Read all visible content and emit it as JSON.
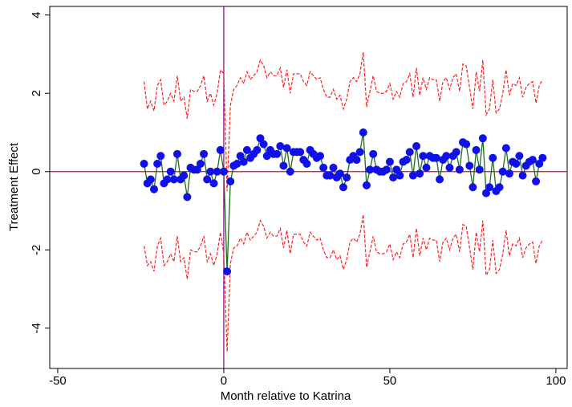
{
  "chart_data": {
    "type": "line",
    "xlabel": "Month relative to Katrina",
    "ylabel": "Treatment Effect",
    "xlim": [
      -52.4,
      103.4
    ],
    "ylim": [
      -5.03,
      4.22
    ],
    "xticks": [
      -50,
      0,
      50,
      100
    ],
    "yticks": [
      -4,
      -2,
      0,
      2,
      4
    ],
    "reference_lines": {
      "x": 0,
      "x_color": "#800080",
      "y": 0,
      "y_color": "#e8001c"
    },
    "x": [
      -24,
      -23,
      -22,
      -21,
      -20,
      -19,
      -18,
      -17,
      -16,
      -15,
      -14,
      -13,
      -12,
      -11,
      -10,
      -9,
      -8,
      -7,
      -6,
      -5,
      -4,
      -3,
      -2,
      -1,
      0,
      1,
      2,
      3,
      4,
      5,
      6,
      7,
      8,
      9,
      10,
      11,
      12,
      13,
      14,
      15,
      16,
      17,
      18,
      19,
      20,
      21,
      22,
      23,
      24,
      25,
      26,
      27,
      28,
      29,
      30,
      31,
      32,
      33,
      34,
      35,
      36,
      37,
      38,
      39,
      40,
      41,
      42,
      43,
      44,
      45,
      46,
      47,
      48,
      49,
      50,
      51,
      52,
      53,
      54,
      55,
      56,
      57,
      58,
      59,
      60,
      61,
      62,
      63,
      64,
      65,
      66,
      67,
      68,
      69,
      70,
      71,
      72,
      73,
      74,
      75,
      76,
      77,
      78,
      79,
      80,
      81,
      82,
      83,
      84,
      85,
      86,
      87,
      88,
      89,
      90,
      91,
      92,
      93,
      94,
      95,
      96
    ],
    "series": [
      {
        "color": "#1e6b1e",
        "marker_color": "#1010e8",
        "style": "solid",
        "markers": true,
        "values": [
          0.2,
          -0.3,
          -0.2,
          -0.45,
          0.2,
          0.4,
          -0.3,
          -0.2,
          0.0,
          -0.2,
          0.45,
          -0.2,
          -0.1,
          -0.65,
          0.1,
          0.05,
          0.05,
          0.2,
          0.45,
          -0.2,
          0.0,
          -0.3,
          0.0,
          0.55,
          0.0,
          -2.55,
          -0.25,
          0.15,
          0.2,
          0.4,
          0.25,
          0.55,
          0.35,
          0.45,
          0.55,
          0.85,
          0.7,
          0.4,
          0.55,
          0.45,
          0.45,
          0.65,
          0.15,
          0.6,
          0.0,
          0.5,
          0.5,
          0.5,
          0.3,
          0.2,
          0.55,
          0.45,
          0.35,
          0.4,
          0.1,
          -0.1,
          -0.1,
          0.1,
          -0.15,
          -0.05,
          -0.4,
          -0.15,
          0.3,
          0.4,
          0.3,
          0.5,
          1.0,
          -0.35,
          0.05,
          0.45,
          0.05,
          0.0,
          0.0,
          0.05,
          0.25,
          -0.15,
          0.05,
          -0.1,
          0.25,
          0.3,
          0.5,
          -0.1,
          0.65,
          -0.05,
          0.4,
          0.1,
          0.4,
          0.35,
          0.35,
          -0.2,
          0.3,
          0.4,
          0.1,
          0.4,
          0.5,
          0.05,
          0.75,
          0.7,
          0.15,
          -0.4,
          0.55,
          0.05,
          0.85,
          -0.55,
          -0.4,
          0.35,
          -0.5,
          -0.4,
          0.0,
          0.6,
          -0.05,
          0.25,
          0.2,
          0.4,
          -0.1,
          0.15,
          0.25,
          0.3,
          -0.25,
          0.2,
          0.35
        ]
      },
      {
        "color": "#ff2020",
        "style": "dashed",
        "markers": false,
        "values": [
          2.3,
          1.6,
          1.8,
          1.55,
          2.2,
          2.35,
          1.7,
          1.8,
          2.0,
          1.8,
          2.45,
          1.8,
          1.9,
          1.35,
          2.1,
          2.05,
          2.05,
          2.2,
          2.45,
          1.8,
          2.0,
          1.7,
          2.0,
          2.6,
          2.5,
          -0.5,
          1.7,
          2.1,
          2.2,
          2.4,
          2.25,
          2.55,
          2.35,
          2.45,
          2.55,
          2.85,
          2.7,
          2.4,
          2.55,
          2.45,
          2.45,
          2.65,
          2.15,
          2.6,
          2.0,
          2.5,
          2.5,
          2.5,
          2.3,
          2.2,
          2.55,
          2.45,
          2.35,
          2.4,
          2.1,
          1.9,
          1.9,
          2.1,
          1.85,
          1.95,
          1.6,
          1.85,
          2.3,
          2.4,
          2.3,
          2.5,
          3.05,
          1.65,
          2.05,
          2.45,
          2.05,
          2.0,
          2.0,
          2.05,
          2.25,
          1.85,
          2.05,
          1.9,
          2.25,
          2.3,
          2.5,
          1.9,
          2.65,
          1.95,
          2.4,
          2.1,
          2.4,
          2.35,
          2.35,
          1.8,
          2.3,
          2.4,
          2.1,
          2.4,
          2.5,
          2.05,
          2.75,
          2.7,
          2.15,
          1.6,
          2.55,
          2.05,
          2.85,
          1.45,
          1.6,
          2.35,
          1.5,
          1.6,
          2.0,
          2.6,
          1.95,
          2.25,
          2.2,
          2.4,
          1.9,
          2.15,
          2.25,
          2.3,
          1.75,
          2.2,
          2.35
        ]
      },
      {
        "color": "#ff2020",
        "style": "dashed",
        "markers": false,
        "values": [
          -1.9,
          -2.4,
          -2.3,
          -2.55,
          -1.9,
          -1.7,
          -2.4,
          -2.3,
          -2.1,
          -2.3,
          -1.65,
          -2.3,
          -2.2,
          -2.75,
          -2.0,
          -2.05,
          -2.05,
          -1.9,
          -1.65,
          -2.3,
          -2.1,
          -2.4,
          -2.1,
          -1.55,
          -2.1,
          -4.6,
          -2.35,
          -1.95,
          -1.9,
          -1.7,
          -1.85,
          -1.55,
          -1.75,
          -1.65,
          -1.55,
          -1.25,
          -1.4,
          -1.7,
          -1.55,
          -1.65,
          -1.65,
          -1.45,
          -1.95,
          -1.5,
          -2.1,
          -1.6,
          -1.6,
          -1.6,
          -1.8,
          -1.9,
          -1.55,
          -1.65,
          -1.75,
          -1.7,
          -2.0,
          -2.2,
          -2.2,
          -2.0,
          -2.25,
          -2.15,
          -2.5,
          -2.25,
          -1.8,
          -1.7,
          -1.8,
          -1.6,
          -1.1,
          -2.45,
          -2.05,
          -1.65,
          -2.05,
          -2.1,
          -2.1,
          -2.05,
          -1.85,
          -2.25,
          -2.05,
          -2.2,
          -1.85,
          -1.8,
          -1.6,
          -2.2,
          -1.45,
          -2.15,
          -1.7,
          -2.0,
          -1.7,
          -1.75,
          -1.75,
          -2.3,
          -1.8,
          -1.7,
          -2.0,
          -1.7,
          -1.6,
          -2.05,
          -1.35,
          -1.4,
          -1.95,
          -2.5,
          -1.55,
          -2.05,
          -1.25,
          -2.65,
          -2.5,
          -1.75,
          -2.6,
          -2.5,
          -2.1,
          -1.5,
          -2.15,
          -1.85,
          -1.9,
          -1.7,
          -2.2,
          -1.95,
          -1.85,
          -1.8,
          -2.35,
          -1.9,
          -1.75
        ]
      }
    ]
  }
}
